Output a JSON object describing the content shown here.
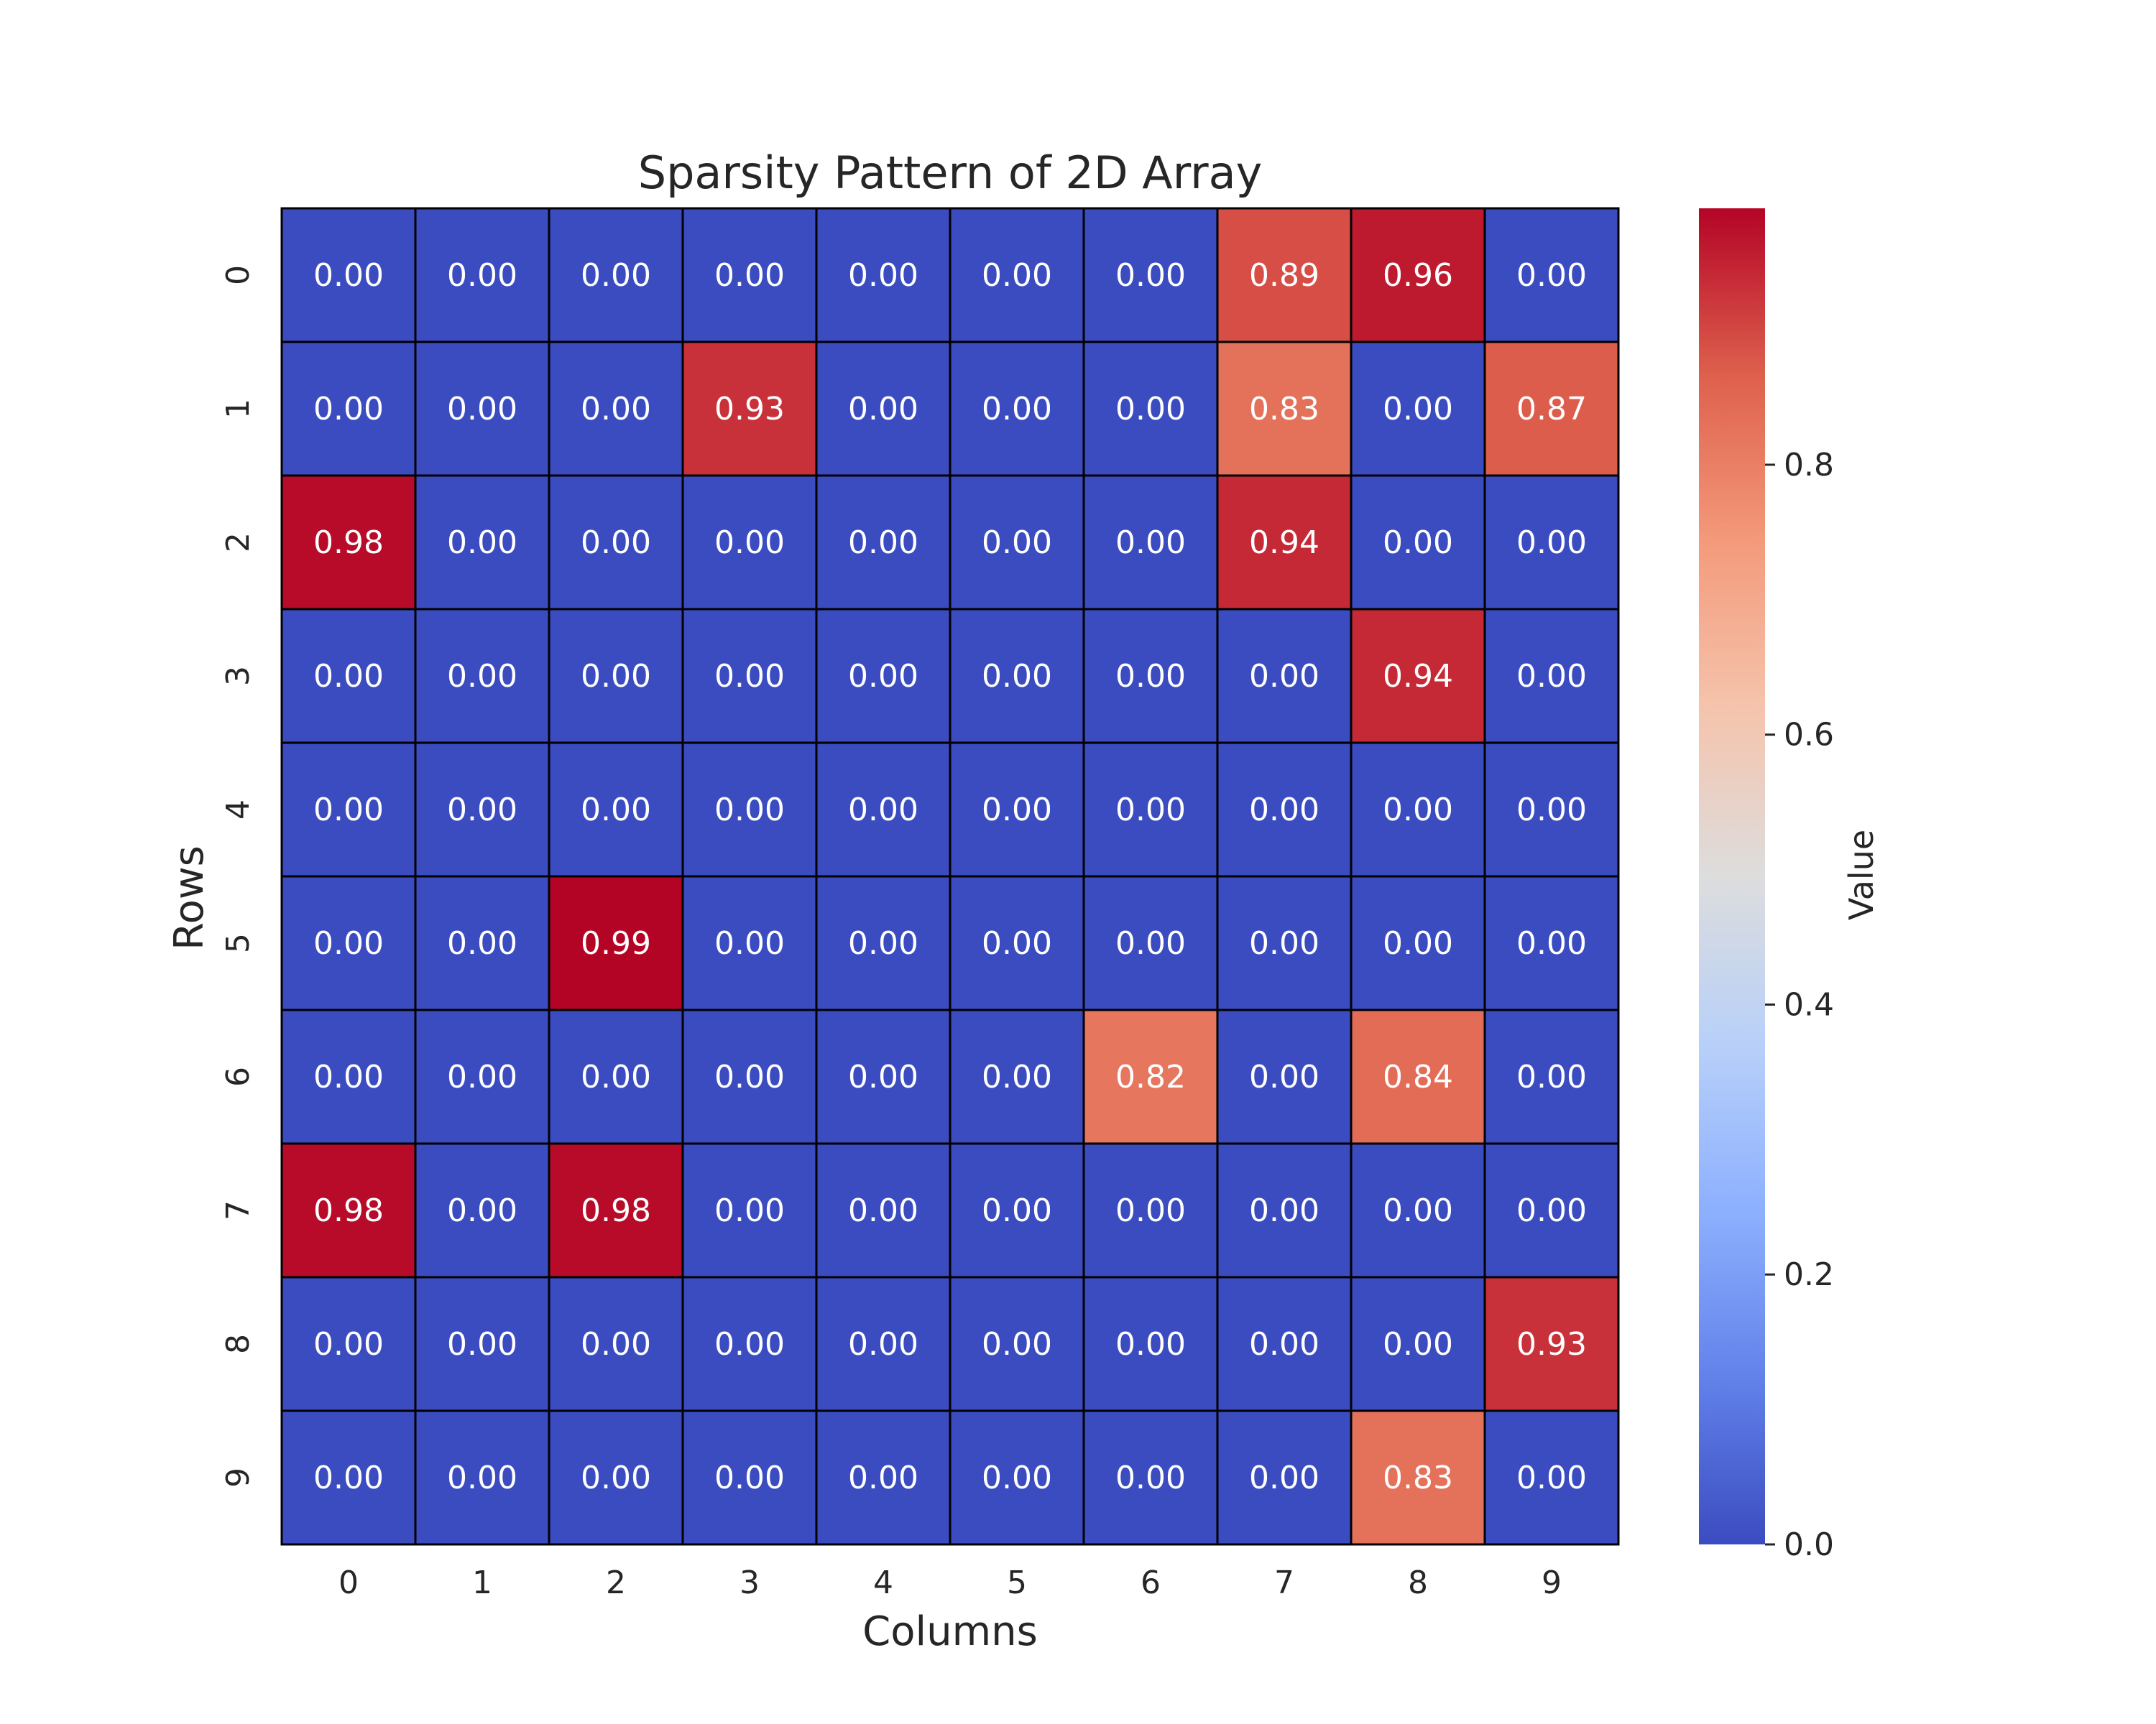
{
  "chart_data": {
    "type": "heatmap",
    "title": "Sparsity Pattern of 2D Array",
    "xlabel": "Columns",
    "ylabel": "Rows",
    "x_categories": [
      "0",
      "1",
      "2",
      "3",
      "4",
      "5",
      "6",
      "7",
      "8",
      "9"
    ],
    "y_categories": [
      "0",
      "1",
      "2",
      "3",
      "4",
      "5",
      "6",
      "7",
      "8",
      "9"
    ],
    "values": [
      [
        0.0,
        0.0,
        0.0,
        0.0,
        0.0,
        0.0,
        0.0,
        0.89,
        0.96,
        0.0
      ],
      [
        0.0,
        0.0,
        0.0,
        0.93,
        0.0,
        0.0,
        0.0,
        0.83,
        0.0,
        0.87
      ],
      [
        0.98,
        0.0,
        0.0,
        0.0,
        0.0,
        0.0,
        0.0,
        0.94,
        0.0,
        0.0
      ],
      [
        0.0,
        0.0,
        0.0,
        0.0,
        0.0,
        0.0,
        0.0,
        0.0,
        0.94,
        0.0
      ],
      [
        0.0,
        0.0,
        0.0,
        0.0,
        0.0,
        0.0,
        0.0,
        0.0,
        0.0,
        0.0
      ],
      [
        0.0,
        0.0,
        0.99,
        0.0,
        0.0,
        0.0,
        0.0,
        0.0,
        0.0,
        0.0
      ],
      [
        0.0,
        0.0,
        0.0,
        0.0,
        0.0,
        0.0,
        0.82,
        0.0,
        0.84,
        0.0
      ],
      [
        0.98,
        0.0,
        0.98,
        0.0,
        0.0,
        0.0,
        0.0,
        0.0,
        0.0,
        0.0
      ],
      [
        0.0,
        0.0,
        0.0,
        0.0,
        0.0,
        0.0,
        0.0,
        0.0,
        0.0,
        0.93
      ],
      [
        0.0,
        0.0,
        0.0,
        0.0,
        0.0,
        0.0,
        0.0,
        0.0,
        0.83,
        0.0
      ]
    ],
    "value_format_decimals": 2,
    "colormap": "coolwarm",
    "color_range": [
      0.0,
      0.99
    ],
    "colorbar": {
      "label": "Value",
      "ticks": [
        0.0,
        0.2,
        0.4,
        0.6,
        0.8
      ],
      "tick_labels": [
        "0.0",
        "0.2",
        "0.4",
        "0.6",
        "0.8"
      ],
      "placement": "right"
    },
    "cell_border_color": "#000000",
    "annotation_color": "#ffffff"
  }
}
